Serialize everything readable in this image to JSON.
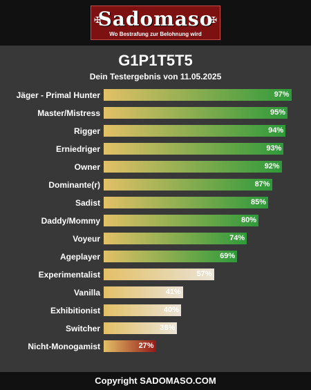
{
  "header": {
    "logo_title": "Sadomaso",
    "logo_subtitle": "Wo Bestrafung zur Belohnung wird",
    "cross_glyph": "✠"
  },
  "result": {
    "title": "G1P1T5T5",
    "subtitle": "Dein Testergebnis von 11.05.2025"
  },
  "chart_data": {
    "type": "bar",
    "orientation": "horizontal",
    "categories": [
      "Jäger - Primal Hunter",
      "Master/Mistress",
      "Rigger",
      "Erniedriger",
      "Owner",
      "Dominante(r)",
      "Sadist",
      "Daddy/Mommy",
      "Voyeur",
      "Ageplayer",
      "Experimentalist",
      "Vanilla",
      "Exhibitionist",
      "Switcher",
      "Nicht-Monogamist"
    ],
    "values": [
      97,
      95,
      94,
      93,
      92,
      87,
      85,
      80,
      74,
      69,
      57,
      41,
      40,
      38,
      27
    ],
    "value_labels": [
      "97%",
      "95%",
      "94%",
      "93%",
      "92%",
      "87%",
      "85%",
      "80%",
      "74%",
      "69%",
      "57%",
      "41%",
      "40%",
      "38%",
      "27%"
    ],
    "color_groups": [
      "green",
      "green",
      "green",
      "green",
      "green",
      "green",
      "green",
      "green",
      "green",
      "green",
      "cream",
      "cream",
      "cream",
      "cream",
      "red"
    ],
    "colors": {
      "bar_start": "#e3c066",
      "green_end": "#2e9a3a",
      "cream_end": "#eae3d6",
      "red_end": "#941818"
    },
    "xlim": [
      0,
      100
    ]
  },
  "footer": {
    "copyright": "Copyright SADOMASO.COM"
  }
}
